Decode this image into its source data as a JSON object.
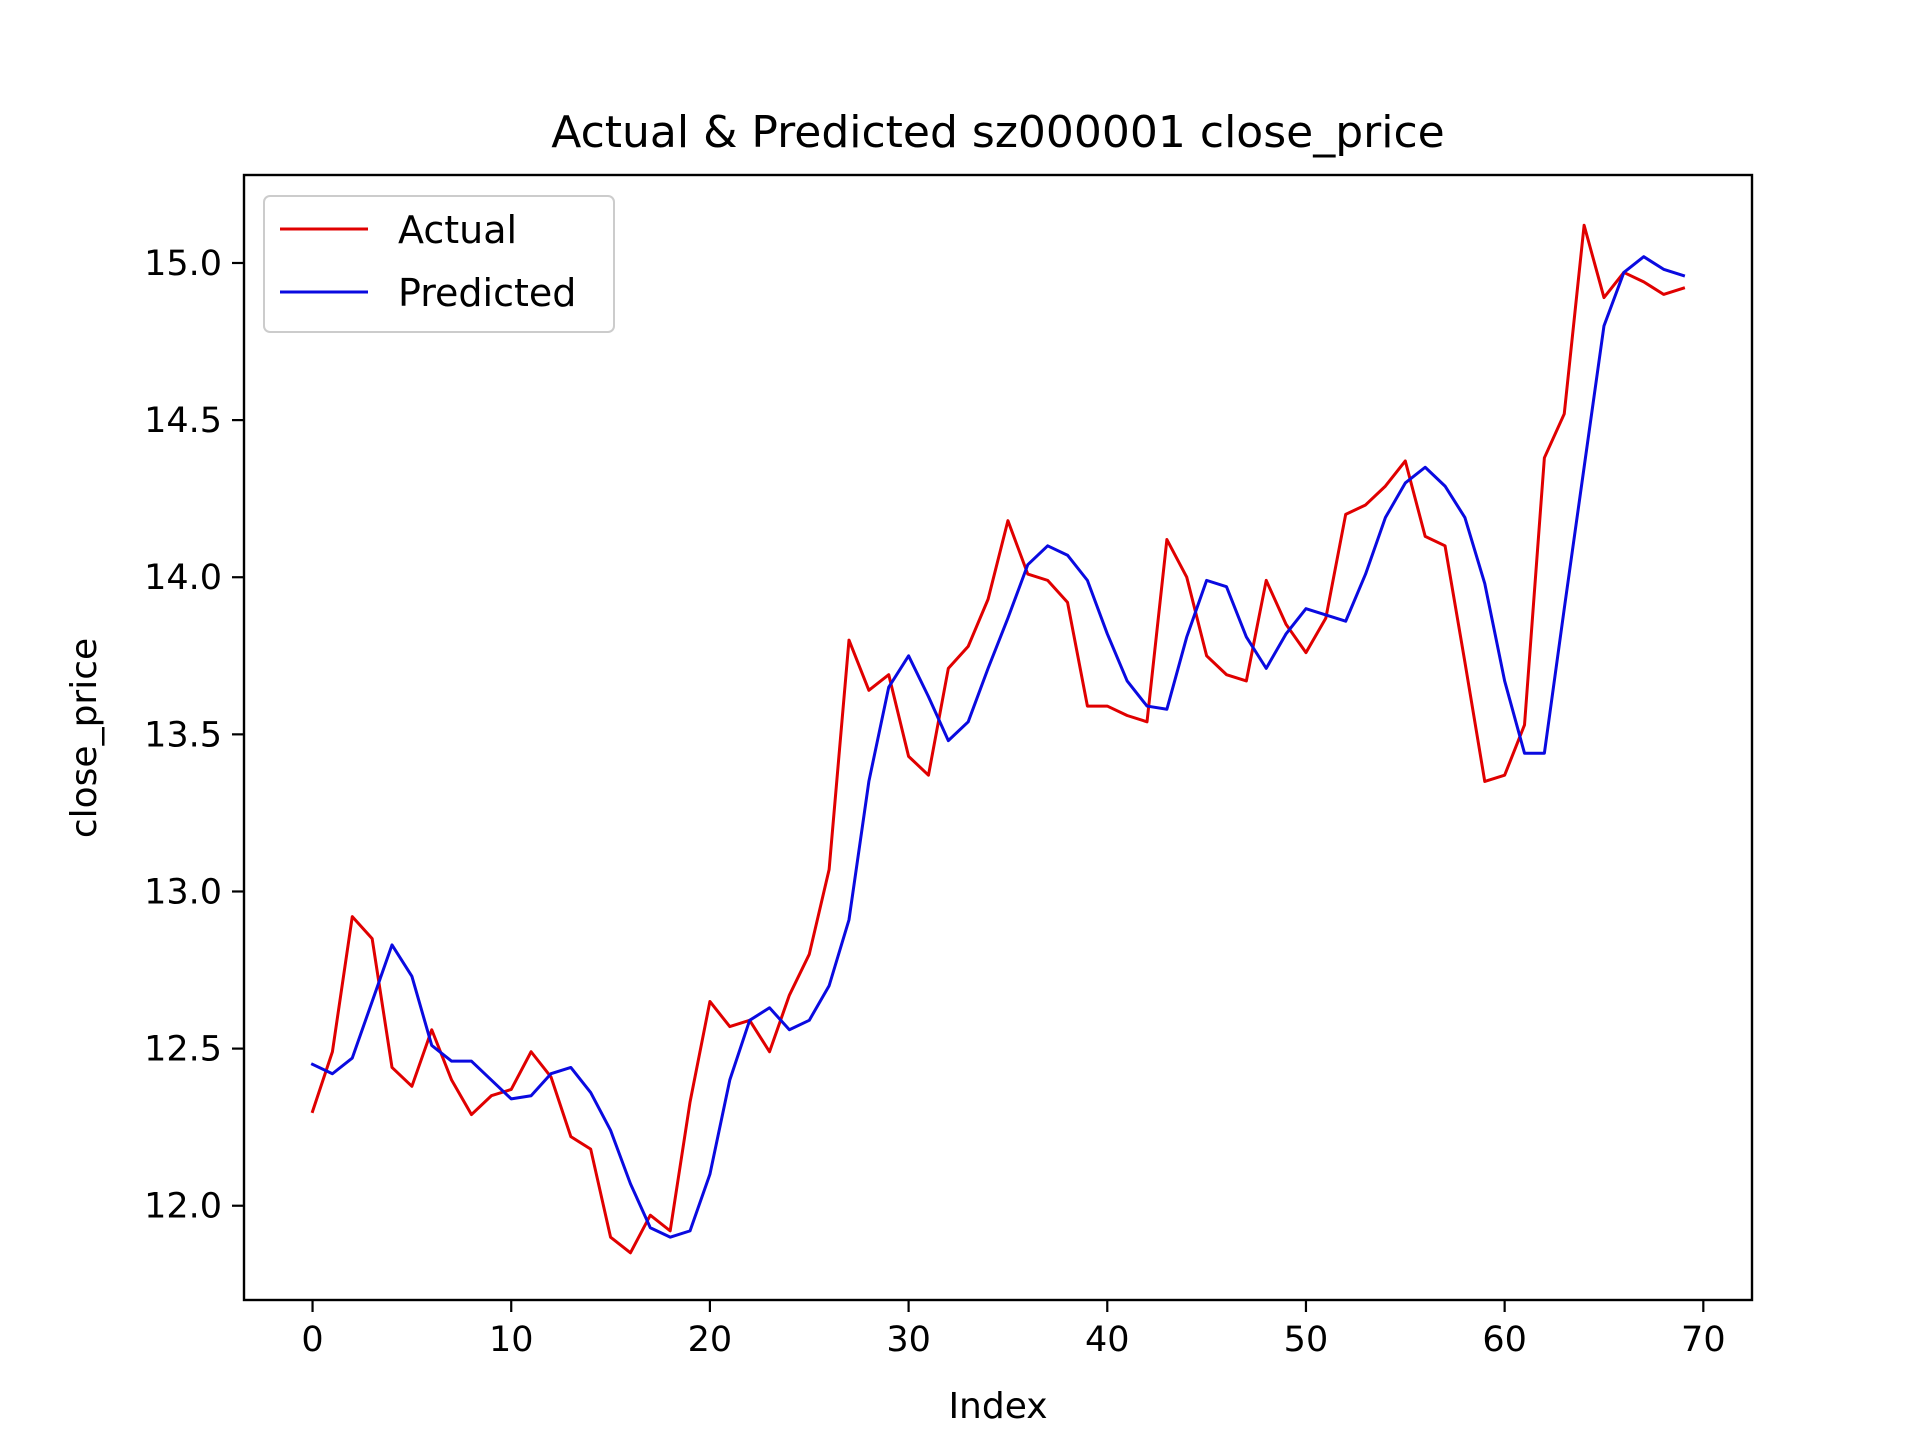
{
  "chart_data": {
    "type": "line",
    "title": "Actual & Predicted sz000001 close_price",
    "xlabel": "Index",
    "ylabel": "close_price",
    "xlim": [
      -3.45,
      72.45
    ],
    "ylim": [
      11.7,
      15.28
    ],
    "xticks": [
      0,
      10,
      20,
      30,
      40,
      50,
      60,
      70
    ],
    "yticks": [
      12.0,
      12.5,
      13.0,
      13.5,
      14.0,
      14.5,
      15.0
    ],
    "xtick_labels": [
      "0",
      "10",
      "20",
      "30",
      "40",
      "50",
      "60",
      "70"
    ],
    "ytick_labels": [
      "12.0",
      "12.5",
      "13.0",
      "13.5",
      "14.0",
      "14.5",
      "15.0"
    ],
    "grid": false,
    "legend_position": "top-left",
    "series": [
      {
        "name": "Actual",
        "color": "#e00000",
        "values": [
          12.3,
          12.49,
          12.92,
          12.85,
          12.44,
          12.38,
          12.56,
          12.4,
          12.29,
          12.35,
          12.37,
          12.49,
          12.41,
          12.22,
          12.18,
          11.9,
          11.85,
          11.97,
          11.92,
          12.33,
          12.65,
          12.57,
          12.59,
          12.49,
          12.67,
          12.8,
          13.07,
          13.8,
          13.64,
          13.69,
          13.43,
          13.37,
          13.71,
          13.78,
          13.93,
          14.18,
          14.01,
          13.99,
          13.92,
          13.59,
          13.59,
          13.56,
          13.54,
          14.12,
          14.0,
          13.75,
          13.69,
          13.67,
          13.99,
          13.85,
          13.76,
          13.87,
          14.2,
          14.23,
          14.29,
          14.37,
          14.13,
          14.1,
          13.73,
          13.35,
          13.37,
          13.53,
          14.38,
          14.52,
          15.12,
          14.89,
          14.97,
          14.94,
          14.9,
          14.92
        ]
      },
      {
        "name": "Predicted",
        "color": "#0a0ae0",
        "values": [
          12.45,
          12.42,
          12.47,
          12.65,
          12.83,
          12.73,
          12.51,
          12.46,
          12.46,
          12.4,
          12.34,
          12.35,
          12.42,
          12.44,
          12.36,
          12.24,
          12.07,
          11.93,
          11.9,
          11.92,
          12.1,
          12.4,
          12.59,
          12.63,
          12.56,
          12.59,
          12.7,
          12.91,
          13.35,
          13.65,
          13.75,
          13.62,
          13.48,
          13.54,
          13.71,
          13.87,
          14.04,
          14.1,
          14.07,
          13.99,
          13.82,
          13.67,
          13.59,
          13.58,
          13.81,
          13.99,
          13.97,
          13.81,
          13.71,
          13.82,
          13.9,
          13.88,
          13.86,
          14.01,
          14.19,
          14.3,
          14.35,
          14.29,
          14.19,
          13.98,
          13.67,
          13.44,
          13.44,
          13.9,
          14.35,
          14.8,
          14.97,
          15.02,
          14.98,
          14.96
        ]
      }
    ]
  }
}
